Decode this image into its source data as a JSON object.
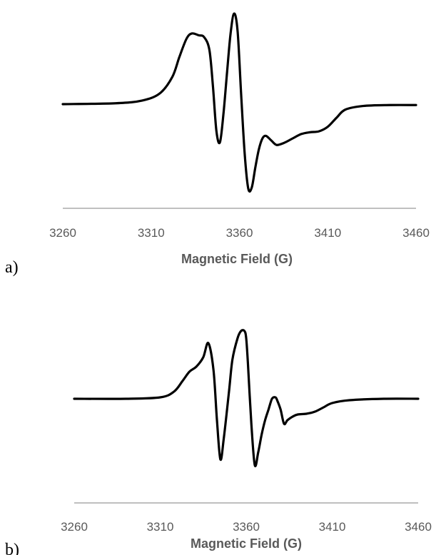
{
  "chart_data": [
    {
      "type": "line",
      "panel_label": "a)",
      "xlabel": "Magnetic Field (G)",
      "ylabel": "",
      "xlim": [
        3260,
        3460
      ],
      "xticks": [
        "3260",
        "3310",
        "3360",
        "3410",
        "3460"
      ],
      "grid": false,
      "legend": "none",
      "line_color": "#000000",
      "axis_color": "#bfbfbf",
      "series": [
        {
          "x": [
            3260,
            3290,
            3305,
            3315,
            3322,
            3326,
            3330,
            3333,
            3337,
            3340,
            3343,
            3345,
            3347,
            3349,
            3351,
            3353,
            3355,
            3357,
            3359,
            3361,
            3363,
            3365,
            3367,
            3369,
            3371,
            3373,
            3375,
            3378,
            3381,
            3385,
            3390,
            3395,
            3400,
            3405,
            3410,
            3415,
            3420,
            3430,
            3445,
            3460
          ],
          "y": [
            0.0,
            0.01,
            0.04,
            0.12,
            0.3,
            0.52,
            0.72,
            0.78,
            0.76,
            0.74,
            0.6,
            0.2,
            -0.3,
            -0.42,
            -0.1,
            0.35,
            0.78,
            1.0,
            0.8,
            0.1,
            -0.55,
            -0.93,
            -0.92,
            -0.7,
            -0.5,
            -0.38,
            -0.35,
            -0.4,
            -0.45,
            -0.43,
            -0.38,
            -0.33,
            -0.31,
            -0.3,
            -0.25,
            -0.15,
            -0.06,
            -0.02,
            -0.01,
            -0.01
          ]
        }
      ]
    },
    {
      "type": "line",
      "panel_label": "b)",
      "xlabel": "Magnetic Field (G)",
      "ylabel": "",
      "xlim": [
        3260,
        3460
      ],
      "xticks": [
        "3260",
        "3310",
        "3360",
        "3410",
        "3460"
      ],
      "grid": false,
      "legend": "none",
      "line_color": "#000000",
      "axis_color": "#bfbfbf",
      "series": [
        {
          "x": [
            3260,
            3290,
            3310,
            3318,
            3323,
            3327,
            3331,
            3335,
            3338,
            3341,
            3343,
            3345,
            3347,
            3350,
            3352,
            3355,
            3357,
            3359,
            3360,
            3361,
            3363,
            3365,
            3367,
            3369,
            3371,
            3373,
            3375,
            3377,
            3378,
            3380,
            3382,
            3384,
            3387,
            3390,
            3395,
            3400,
            3405,
            3410,
            3420,
            3440,
            3460
          ],
          "y": [
            0.0,
            0.0,
            0.02,
            0.1,
            0.25,
            0.38,
            0.45,
            0.58,
            0.78,
            0.4,
            -0.3,
            -0.85,
            -0.55,
            0.1,
            0.55,
            0.85,
            0.95,
            0.95,
            0.85,
            0.5,
            -0.35,
            -0.93,
            -0.75,
            -0.5,
            -0.3,
            -0.15,
            0.0,
            0.02,
            -0.02,
            -0.15,
            -0.35,
            -0.3,
            -0.25,
            -0.22,
            -0.21,
            -0.18,
            -0.12,
            -0.06,
            -0.02,
            0.0,
            0.0
          ]
        }
      ]
    }
  ]
}
